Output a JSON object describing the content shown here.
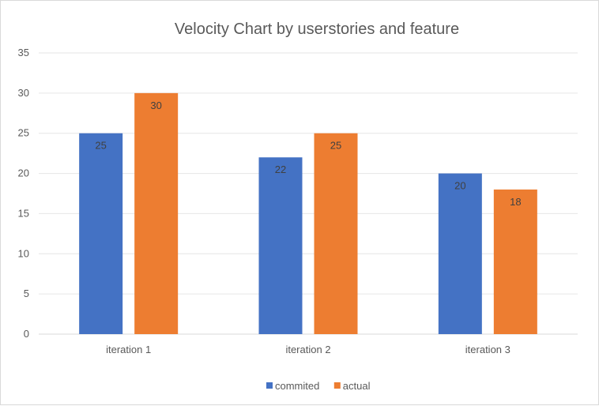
{
  "chart_data": {
    "type": "bar",
    "title": "Velocity Chart by userstories and feature",
    "categories": [
      "iteration 1",
      "iteration 2",
      "iteration 3"
    ],
    "series": [
      {
        "name": "commited",
        "values": [
          25,
          22,
          20
        ],
        "color": "#4472c4"
      },
      {
        "name": "actual",
        "values": [
          30,
          25,
          18
        ],
        "color": "#ed7d31"
      }
    ],
    "ylim": [
      0,
      35
    ],
    "yticks": [
      0,
      5,
      10,
      15,
      20,
      25,
      30,
      35
    ],
    "grid": true,
    "legend": "bottom",
    "data_labels": true
  }
}
